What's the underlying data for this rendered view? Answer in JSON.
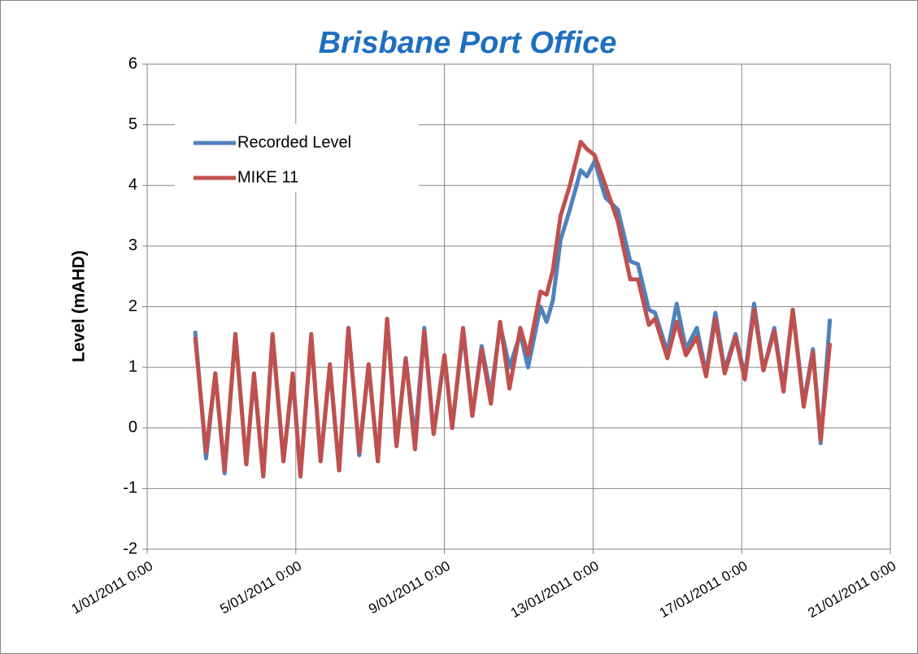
{
  "chart_data": {
    "type": "line",
    "title": "Brisbane Port Office",
    "y_label": "Level (mAHD)",
    "x": [
      "2/01/2011 7:00",
      "2/01/2011 14:00",
      "2/01/2011 20:00",
      "3/01/2011 2:00",
      "3/01/2011 9:00",
      "3/01/2011 16:00",
      "3/01/2011 21:00",
      "4/01/2011 3:00",
      "4/01/2011 9:00",
      "4/01/2011 16:00",
      "4/01/2011 22:00",
      "5/01/2011 3:00",
      "5/01/2011 10:00",
      "5/01/2011 16:00",
      "5/01/2011 22:00",
      "6/01/2011 4:00",
      "6/01/2011 10:00",
      "6/01/2011 17:00",
      "6/01/2011 23:00",
      "7/01/2011 5:00",
      "7/01/2011 11:00",
      "7/01/2011 17:00",
      "7/01/2011 23:00",
      "8/01/2011 5:00",
      "8/01/2011 11:00",
      "8/01/2011 17:00",
      "9/01/2011 0:00",
      "9/01/2011 5:00",
      "9/01/2011 12:00",
      "9/01/2011 18:00",
      "10/01/2011 0:00",
      "10/01/2011 6:00",
      "10/01/2011 12:00",
      "10/01/2011 18:00",
      "11/01/2011 1:00",
      "11/01/2011 6:00",
      "11/01/2011 14:00",
      "11/01/2011 18:00",
      "11/01/2011 22:00",
      "12/01/2011 3:00",
      "12/01/2011 9:00",
      "12/01/2011 16:00",
      "12/01/2011 20:00",
      "13/01/2011 1:00",
      "13/01/2011 8:00",
      "13/01/2011 16:00",
      "14/01/2011 0:00",
      "14/01/2011 5:00",
      "14/01/2011 12:00",
      "14/01/2011 16:00",
      "15/01/2011 0:00",
      "15/01/2011 6:00",
      "15/01/2011 12:00",
      "15/01/2011 19:00",
      "16/01/2011 1:00",
      "16/01/2011 7:00",
      "16/01/2011 13:00",
      "16/01/2011 20:00",
      "17/01/2011 2:00",
      "17/01/2011 8:00",
      "17/01/2011 14:00",
      "17/01/2011 21:00",
      "18/01/2011 3:00",
      "18/01/2011 9:00",
      "18/01/2011 16:00",
      "18/01/2011 22:00",
      "19/01/2011 3:00",
      "19/01/2011 9:00"
    ],
    "series": [
      {
        "name": "Recorded Level",
        "color": "#4f81bd",
        "values": [
          1.6,
          -0.5,
          0.9,
          -0.75,
          1.55,
          -0.6,
          0.85,
          -0.8,
          1.5,
          -0.55,
          0.85,
          -0.8,
          1.5,
          -0.55,
          1.0,
          -0.7,
          1.65,
          -0.45,
          1.05,
          -0.55,
          1.8,
          -0.3,
          1.15,
          -0.2,
          1.65,
          -0.1,
          1.2,
          0.0,
          1.6,
          0.2,
          1.35,
          0.55,
          1.7,
          1.0,
          1.55,
          1.0,
          2.0,
          1.75,
          2.1,
          3.1,
          3.6,
          4.25,
          4.15,
          4.4,
          3.8,
          3.6,
          2.75,
          2.7,
          1.95,
          1.9,
          1.25,
          2.05,
          1.3,
          1.65,
          0.9,
          1.9,
          0.95,
          1.55,
          0.85,
          2.05,
          0.95,
          1.65,
          0.65,
          1.95,
          0.4,
          1.3,
          -0.25,
          1.8
        ]
      },
      {
        "name": "MIKE 11",
        "color": "#c0504d",
        "values": [
          1.5,
          -0.4,
          0.9,
          -0.7,
          1.55,
          -0.6,
          0.9,
          -0.8,
          1.55,
          -0.55,
          0.9,
          -0.8,
          1.55,
          -0.55,
          1.05,
          -0.7,
          1.65,
          -0.4,
          1.05,
          -0.55,
          1.8,
          -0.3,
          1.15,
          -0.35,
          1.6,
          -0.1,
          1.2,
          0.0,
          1.65,
          0.2,
          1.3,
          0.4,
          1.75,
          0.65,
          1.65,
          1.2,
          2.25,
          2.2,
          2.6,
          3.5,
          4.0,
          4.72,
          4.6,
          4.5,
          4.0,
          3.4,
          2.45,
          2.45,
          1.7,
          1.8,
          1.15,
          1.75,
          1.2,
          1.5,
          0.85,
          1.8,
          0.9,
          1.5,
          0.8,
          1.95,
          0.95,
          1.6,
          0.6,
          1.95,
          0.35,
          1.25,
          -0.2,
          1.4
        ]
      }
    ],
    "xlim": [
      "1/01/2011 0:00",
      "21/01/2011 0:00"
    ],
    "xticks": [
      "1/01/2011 0:00",
      "5/01/2011 0:00",
      "9/01/2011 0:00",
      "13/01/2011 0:00",
      "17/01/2011 0:00",
      "21/01/2011 0:00"
    ],
    "ylim": [
      -2,
      6
    ],
    "yticks": [
      -2,
      -1,
      0,
      1,
      2,
      3,
      4,
      5,
      6
    ],
    "grid": true
  }
}
